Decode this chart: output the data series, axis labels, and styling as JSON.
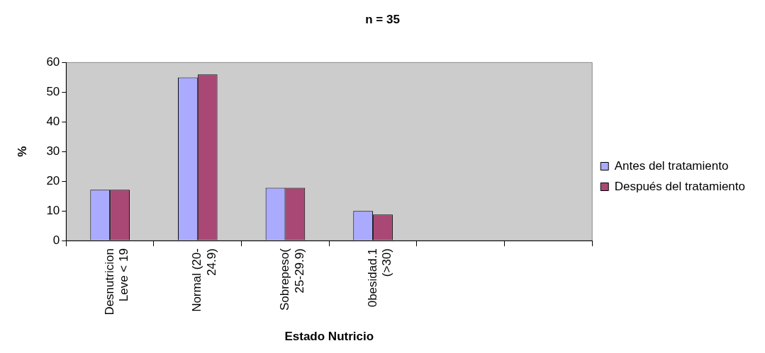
{
  "chart_data": {
    "type": "bar",
    "title": "n = 35",
    "xlabel": "Estado Nutricio",
    "ylabel": "%",
    "categories": [
      "Desnutricion Leve < 19",
      "Normal (20-24.9)",
      "Sobrepeso(25-29.9)",
      "0besidad.1 (>30)",
      null,
      null
    ],
    "series": [
      {
        "name": "Antes del tratamiento",
        "color": "#aaaaff",
        "values": [
          17.1,
          55,
          17.8,
          10,
          null,
          null
        ]
      },
      {
        "name": "Después del tratamiento",
        "color": "#a94874",
        "values": [
          17.1,
          56,
          17.8,
          8.8,
          null,
          null
        ]
      }
    ],
    "ylim": [
      0,
      60
    ],
    "yticks": [
      0,
      10,
      20,
      30,
      40,
      50,
      60
    ],
    "grid": false,
    "legend": "right"
  }
}
